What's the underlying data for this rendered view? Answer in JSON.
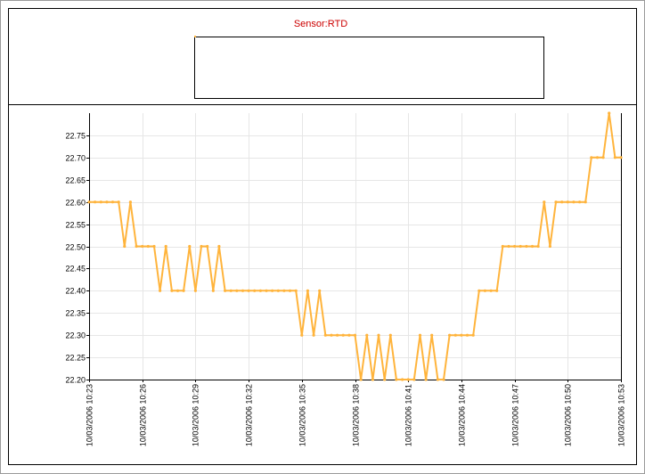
{
  "chart_data": {
    "type": "line",
    "title": "Sensor:RTD",
    "series": [
      {
        "color": "#FFB43C",
        "x": [
          "10:23",
          "10:23:20",
          "10:23:40",
          "10:24",
          "10:24:20",
          "10:24:40",
          "10:25",
          "10:25:20",
          "10:25:40",
          "10:26",
          "10:26:20",
          "10:26:40",
          "10:27",
          "10:27:20",
          "10:27:40",
          "10:28",
          "10:28:20",
          "10:28:40",
          "10:29",
          "10:29:20",
          "10:29:40",
          "10:30",
          "10:30:20",
          "10:30:40",
          "10:31",
          "10:31:20",
          "10:31:40",
          "10:32",
          "10:32:20",
          "10:32:40",
          "10:33",
          "10:33:20",
          "10:33:40",
          "10:34",
          "10:34:20",
          "10:34:40",
          "10:35",
          "10:35:20",
          "10:35:40",
          "10:36",
          "10:36:20",
          "10:36:40",
          "10:37",
          "10:37:20",
          "10:37:40",
          "10:38",
          "10:38:20",
          "10:38:40",
          "10:39",
          "10:39:20",
          "10:39:40",
          "10:40",
          "10:40:20",
          "10:40:40",
          "10:41",
          "10:41:20",
          "10:41:40",
          "10:42",
          "10:42:20",
          "10:42:40",
          "10:43",
          "10:43:20",
          "10:43:40",
          "10:44",
          "10:44:20",
          "10:44:40",
          "10:45",
          "10:45:20",
          "10:45:40",
          "10:46",
          "10:46:20",
          "10:46:40",
          "10:47",
          "10:47:20",
          "10:47:40",
          "10:48",
          "10:48:20",
          "10:48:40",
          "10:49",
          "10:49:20",
          "10:49:40",
          "10:50",
          "10:50:20",
          "10:50:40",
          "10:51",
          "10:51:20",
          "10:51:40",
          "10:52",
          "10:52:20",
          "10:52:40",
          "10:53"
        ],
        "values": [
          22.6,
          22.6,
          22.6,
          22.6,
          22.6,
          22.6,
          22.5,
          22.6,
          22.5,
          22.5,
          22.5,
          22.5,
          22.4,
          22.5,
          22.4,
          22.4,
          22.4,
          22.5,
          22.4,
          22.5,
          22.5,
          22.4,
          22.5,
          22.4,
          22.4,
          22.4,
          22.4,
          22.4,
          22.4,
          22.4,
          22.4,
          22.4,
          22.4,
          22.4,
          22.4,
          22.4,
          22.3,
          22.4,
          22.3,
          22.4,
          22.3,
          22.3,
          22.3,
          22.3,
          22.3,
          22.3,
          22.2,
          22.3,
          22.2,
          22.3,
          22.2,
          22.3,
          22.2,
          22.2,
          22.2,
          22.2,
          22.3,
          22.2,
          22.3,
          22.2,
          22.2,
          22.3,
          22.3,
          22.3,
          22.3,
          22.3,
          22.4,
          22.4,
          22.4,
          22.4,
          22.5,
          22.5,
          22.5,
          22.5,
          22.5,
          22.5,
          22.5,
          22.6,
          22.5,
          22.6,
          22.6,
          22.6,
          22.6,
          22.6,
          22.6,
          22.7,
          22.7,
          22.7,
          22.8,
          22.7,
          22.7
        ]
      }
    ],
    "x_tick_labels": [
      "10/03/2006 10:23",
      "10/03/2006 10:26",
      "10/03/2006 10:29",
      "10/03/2006 10:32",
      "10/03/2006 10:35",
      "10/03/2006 10:38",
      "10/03/2006 10:41",
      "10/03/2006 10:44",
      "10/03/2006 10:47",
      "10/03/2006 10:50",
      "10/03/2006 10:53"
    ],
    "y_tick_labels": [
      "22.75",
      "22.70",
      "22.65",
      "22.60",
      "22.55",
      "22.50",
      "22.45",
      "22.40",
      "22.35",
      "22.30",
      "22.25",
      "22.20"
    ],
    "y_ticks": [
      22.75,
      22.7,
      22.65,
      22.6,
      22.55,
      22.5,
      22.45,
      22.4,
      22.35,
      22.3,
      22.25,
      22.2
    ],
    "ylim": [
      22.2,
      22.8
    ],
    "xlim": [
      "10:23",
      "10:53"
    ],
    "grid": true,
    "legend": "top-center",
    "colors": {
      "title": "#CC0000",
      "line": "#FFB43C",
      "grid": "#E6E6E6",
      "axis": "#000000"
    }
  }
}
